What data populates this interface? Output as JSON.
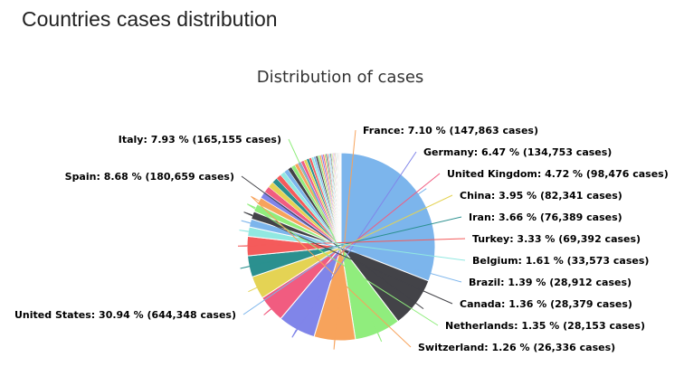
{
  "page": {
    "heading": "Countries cases distribution"
  },
  "chart_data": {
    "type": "pie",
    "title": "Distribution of cases",
    "slices": [
      {
        "name": "United States",
        "percent": 30.94,
        "cases": 644348,
        "label": "United States: 30.94 % (644,348 cases)",
        "color": "#7cb5ec"
      },
      {
        "name": "Spain",
        "percent": 8.68,
        "cases": 180659,
        "label": "Spain: 8.68 % (180,659 cases)",
        "color": "#434348"
      },
      {
        "name": "Italy",
        "percent": 7.93,
        "cases": 165155,
        "label": "Italy: 7.93 % (165,155 cases)",
        "color": "#90ed7d"
      },
      {
        "name": "France",
        "percent": 7.1,
        "cases": 147863,
        "label": "France: 7.10 % (147,863 cases)",
        "color": "#f7a35c"
      },
      {
        "name": "Germany",
        "percent": 6.47,
        "cases": 134753,
        "label": "Germany: 6.47 % (134,753 cases)",
        "color": "#8085e9"
      },
      {
        "name": "United Kingdom",
        "percent": 4.72,
        "cases": 98476,
        "label": "United Kingdom: 4.72 % (98,476 cases)",
        "color": "#f15c80"
      },
      {
        "name": "China",
        "percent": 3.95,
        "cases": 82341,
        "label": "China: 3.95 % (82,341 cases)",
        "color": "#e4d354"
      },
      {
        "name": "Iran",
        "percent": 3.66,
        "cases": 76389,
        "label": "Iran: 3.66 % (76,389 cases)",
        "color": "#2b908f"
      },
      {
        "name": "Turkey",
        "percent": 3.33,
        "cases": 69392,
        "label": "Turkey: 3.33 % (69,392 cases)",
        "color": "#f45b5b"
      },
      {
        "name": "Belgium",
        "percent": 1.61,
        "cases": 33573,
        "label": "Belgium: 1.61 % (33,573 cases)",
        "color": "#91e8e1"
      },
      {
        "name": "Brazil",
        "percent": 1.39,
        "cases": 28912,
        "label": "Brazil: 1.39 % (28,912 cases)",
        "color": "#7cb5ec"
      },
      {
        "name": "Canada",
        "percent": 1.36,
        "cases": 28379,
        "label": "Canada: 1.36 % (28,379 cases)",
        "color": "#434348"
      },
      {
        "name": "Netherlands",
        "percent": 1.35,
        "cases": 28153,
        "label": "Netherlands: 1.35 % (28,153 cases)",
        "color": "#90ed7d"
      },
      {
        "name": "Switzerland",
        "percent": 1.26,
        "cases": 26336,
        "label": "Switzerland: 1.26 % (26,336 cases)",
        "color": "#f7a35c"
      }
    ],
    "other_slices_percent": 16.25,
    "palette": [
      "#7cb5ec",
      "#434348",
      "#90ed7d",
      "#f7a35c",
      "#8085e9",
      "#f15c80",
      "#e4d354",
      "#2b908f",
      "#f45b5b",
      "#91e8e1"
    ]
  }
}
